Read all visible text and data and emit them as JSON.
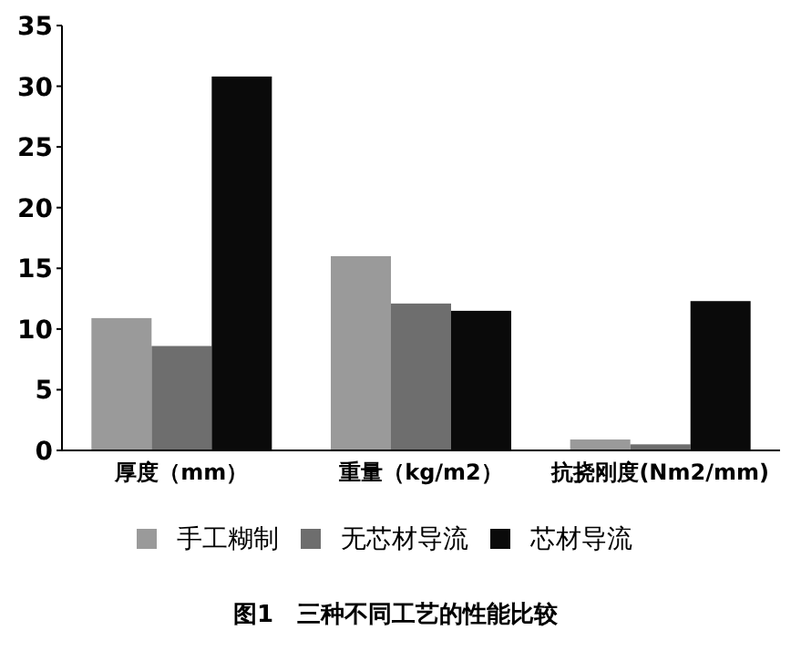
{
  "chart_data": {
    "type": "bar",
    "title": "图1　三种不同工艺的性能比较",
    "categories": [
      "厚度（mm）",
      "重量（kg/m2）",
      "抗挠刚度(Nm2/mm)"
    ],
    "series": [
      {
        "name": "手工糊制",
        "color": "#9a9a9a",
        "values": [
          10.9,
          16.0,
          0.9
        ]
      },
      {
        "name": "无芯材导流",
        "color": "#6e6e6e",
        "values": [
          8.6,
          12.1,
          0.5
        ]
      },
      {
        "name": "芯材导流",
        "color": "#0a0a0a",
        "values": [
          30.8,
          11.5,
          12.3
        ]
      }
    ],
    "ylim": [
      0,
      35
    ],
    "yticks": [
      0,
      5,
      10,
      15,
      20,
      25,
      30,
      35
    ],
    "grid": false,
    "legend": "bottom"
  }
}
